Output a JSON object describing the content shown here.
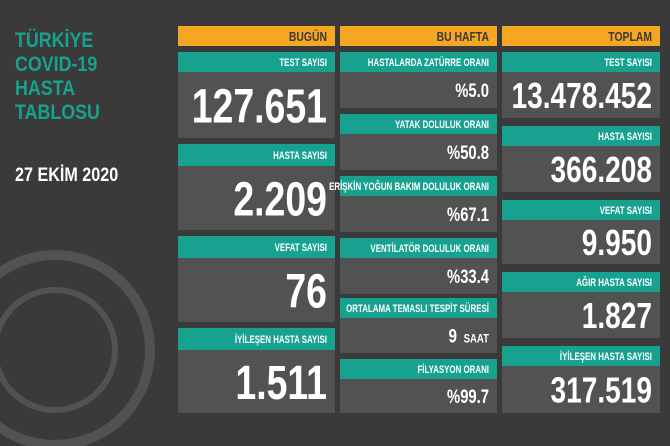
{
  "title_lines": [
    "TÜRKİYE",
    "COVID-19",
    "HASTA",
    "TABLOSU"
  ],
  "date": "27 EKİM 2020",
  "columns": [
    {
      "header": "BUGÜN",
      "cells": [
        {
          "label": "TEST SAYISI",
          "value": "127.651"
        },
        {
          "label": "HASTA SAYISI",
          "value": "2.209"
        },
        {
          "label": "VEFAT SAYISI",
          "value": "76"
        },
        {
          "label": "İYİLEŞEN HASTA SAYISI",
          "value": "1.511"
        }
      ]
    },
    {
      "header": "BU HAFTA",
      "cells": [
        {
          "label": "HASTALARDA ZATÜRRE ORANI",
          "value": "%5.0"
        },
        {
          "label": "YATAK DOLULUK ORANI",
          "value": "%50.8"
        },
        {
          "label": "ERİŞKİN YOĞUN BAKIM DOLULUK ORANI",
          "value": "%67.1"
        },
        {
          "label": "VENTİLATÖR DOLULUK ORANI",
          "value": "%33.4"
        },
        {
          "label": "ORTALAMA TEMASLI TESPİT SÜRESİ",
          "value": "9",
          "unit": "SAAT"
        },
        {
          "label": "FİLYASYON ORANI",
          "value": "%99.7"
        }
      ]
    },
    {
      "header": "TOPLAM",
      "cells": [
        {
          "label": "TEST SAYISI",
          "value": "13.478.452"
        },
        {
          "label": "HASTA SAYISI",
          "value": "366.208"
        },
        {
          "label": "VEFAT SAYISI",
          "value": "9.950"
        },
        {
          "label": "AĞIR HASTA SAYISI",
          "value": "1.827"
        },
        {
          "label": "İYİLEŞEN HASTA SAYISI",
          "value": "317.519"
        }
      ]
    }
  ]
}
